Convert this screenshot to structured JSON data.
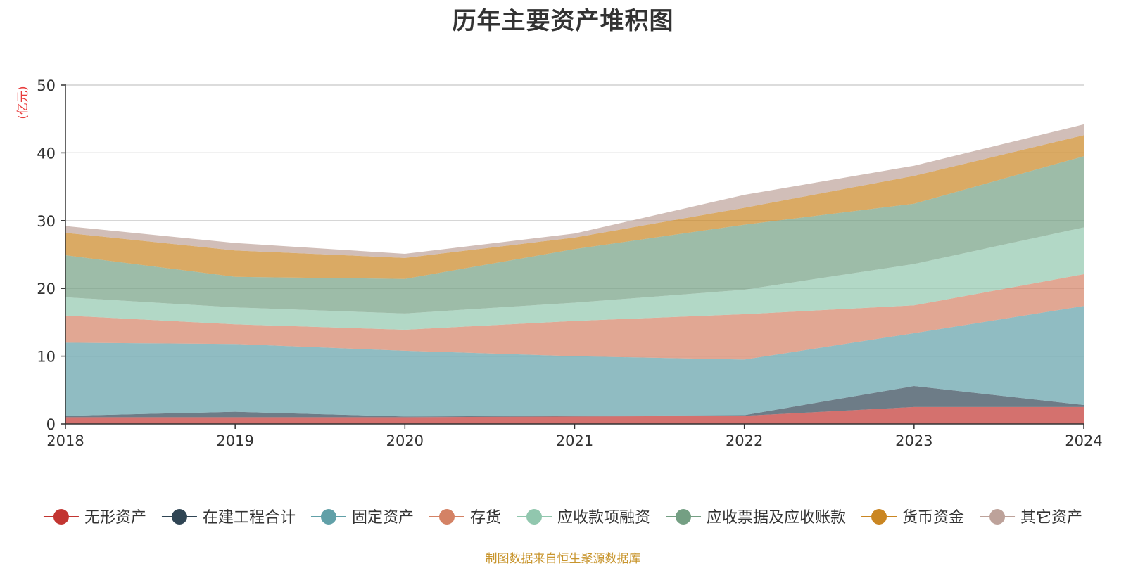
{
  "title": "历年主要资产堆积图",
  "source_note": "制图数据来自恒生聚源数据库",
  "chart_data": {
    "type": "area",
    "stacked": true,
    "unit_label": "(亿元)",
    "x": [
      "2018",
      "2019",
      "2020",
      "2021",
      "2022",
      "2023",
      "2024"
    ],
    "ylim": [
      0,
      50
    ],
    "yticks": [
      0,
      10,
      20,
      30,
      40,
      50
    ],
    "grid": true,
    "legend_position": "bottom",
    "series": [
      {
        "name": "无形资产",
        "color": "#c23531",
        "values": [
          1.0,
          1.0,
          1.0,
          1.1,
          1.2,
          2.5,
          2.5
        ]
      },
      {
        "name": "在建工程合计",
        "color": "#2f4554",
        "values": [
          0.2,
          0.8,
          0.1,
          0.1,
          0.1,
          3.1,
          0.3
        ]
      },
      {
        "name": "固定资产",
        "color": "#61a0a8",
        "values": [
          10.8,
          10.0,
          9.7,
          8.8,
          8.2,
          7.8,
          14.6
        ]
      },
      {
        "name": "存货",
        "color": "#d48265",
        "values": [
          4.0,
          2.9,
          3.1,
          5.2,
          6.7,
          4.1,
          4.7
        ]
      },
      {
        "name": "应收款项融资",
        "color": "#91c7ae",
        "values": [
          2.7,
          2.5,
          2.4,
          2.7,
          3.6,
          6.1,
          6.9
        ]
      },
      {
        "name": "应收票据及应收账款",
        "color": "#749f83",
        "values": [
          6.2,
          4.5,
          5.1,
          7.9,
          9.6,
          8.9,
          10.5
        ]
      },
      {
        "name": "货币资金",
        "color": "#ca8622",
        "values": [
          3.3,
          3.9,
          3.1,
          1.7,
          2.5,
          4.1,
          3.1
        ]
      },
      {
        "name": "其它资产",
        "color": "#bda29a",
        "values": [
          1.0,
          1.1,
          0.6,
          0.6,
          1.9,
          1.5,
          1.6
        ]
      }
    ]
  }
}
